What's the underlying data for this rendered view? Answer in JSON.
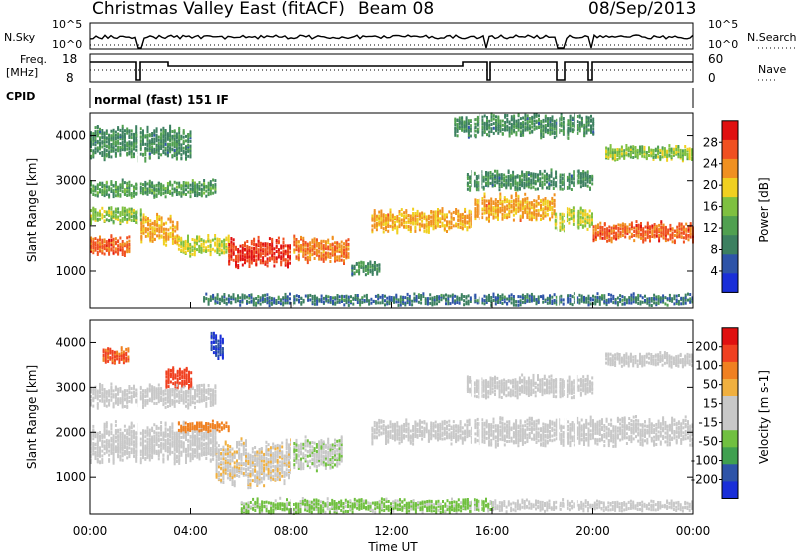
{
  "header": {
    "station": "Christmas Valley East (fitACF)",
    "beam": "Beam 08",
    "date": "08/Sep/2013"
  },
  "top_panels": {
    "nsky_label": "N.Sky",
    "nsky_ticks": [
      "10^5",
      "10^0"
    ],
    "nsearch_label": "N.Search",
    "nsearch_ticks": [
      "10^5",
      "10^0"
    ],
    "freq_label_line1": "Freq.",
    "freq_label_line2": "[MHz]",
    "freq_ticks": [
      "18",
      "8"
    ],
    "nave_label": "Nave",
    "nave_ticks": [
      "60",
      "0"
    ],
    "cpid_label": "CPID",
    "cpid_value": "normal (fast) 151 IF"
  },
  "colors": {
    "power_scale": [
      "#1a2fd8",
      "#2e54a8",
      "#3c8060",
      "#50a050",
      "#7ec040",
      "#f0d020",
      "#f09020",
      "#f05020",
      "#e01010"
    ],
    "velocity_scale": [
      "#e01010",
      "#f04020",
      "#f08020",
      "#f0b040",
      "#c8c8c8",
      "#c8c8c8",
      "#70c040",
      "#40a050",
      "#2e54a8",
      "#1a2fd8"
    ]
  },
  "chart_data": [
    {
      "type": "heatmap",
      "panel": "power",
      "xlabel": "Time UT",
      "ylabel": "Slant Range [km]",
      "x_ticks": [
        "00:00",
        "04:00",
        "08:00",
        "12:00",
        "16:00",
        "20:00",
        "00:00"
      ],
      "xlim": [
        0,
        24
      ],
      "y_ticks": [
        1000,
        2000,
        3000,
        4000
      ],
      "ylim": [
        180,
        4500
      ],
      "colorbar": {
        "label": "Power [dB]",
        "ticks": [
          4,
          8,
          12,
          16,
          20,
          24,
          28
        ],
        "range": [
          0,
          32
        ]
      },
      "echo_bands": [
        {
          "t_start": 0.0,
          "t_end": 1.6,
          "range_km": 1550,
          "width_km": 350,
          "power_db": 26
        },
        {
          "t_start": 2.0,
          "t_end": 3.5,
          "range_km": 1900,
          "width_km": 500,
          "power_db": 22
        },
        {
          "t_start": 3.5,
          "t_end": 5.5,
          "range_km": 1550,
          "width_km": 350,
          "power_db": 18
        },
        {
          "t_start": 5.5,
          "t_end": 8.0,
          "range_km": 1400,
          "width_km": 500,
          "power_db": 28
        },
        {
          "t_start": 8.0,
          "t_end": 10.3,
          "range_km": 1450,
          "width_km": 450,
          "power_db": 24
        },
        {
          "t_start": 0.0,
          "t_end": 2.0,
          "range_km": 2200,
          "width_km": 300,
          "power_db": 16
        },
        {
          "t_start": 0.0,
          "t_end": 5.0,
          "range_km": 2800,
          "width_km": 300,
          "power_db": 12
        },
        {
          "t_start": 0.0,
          "t_end": 4.0,
          "range_km": 3800,
          "width_km": 600,
          "power_db": 10
        },
        {
          "t_start": 10.4,
          "t_end": 11.5,
          "range_km": 1050,
          "width_km": 250,
          "power_db": 10
        },
        {
          "t_start": 11.2,
          "t_end": 15.2,
          "range_km": 2100,
          "width_km": 400,
          "power_db": 22
        },
        {
          "t_start": 15.3,
          "t_end": 18.5,
          "range_km": 2400,
          "width_km": 450,
          "power_db": 22
        },
        {
          "t_start": 18.5,
          "t_end": 20.0,
          "range_km": 2150,
          "width_km": 400,
          "power_db": 18
        },
        {
          "t_start": 20.0,
          "t_end": 24.0,
          "range_km": 1850,
          "width_km": 350,
          "power_db": 26
        },
        {
          "t_start": 20.5,
          "t_end": 24.0,
          "range_km": 3600,
          "width_km": 250,
          "power_db": 16
        },
        {
          "t_start": 15.0,
          "t_end": 20.0,
          "range_km": 3000,
          "width_km": 350,
          "power_db": 10
        },
        {
          "t_start": 14.5,
          "t_end": 20.0,
          "range_km": 4200,
          "width_km": 400,
          "power_db": 10
        },
        {
          "t_start": 4.5,
          "t_end": 24.0,
          "range_km": 350,
          "width_km": 200,
          "power_db": 8
        }
      ]
    },
    {
      "type": "heatmap",
      "panel": "velocity",
      "xlabel": "Time UT",
      "ylabel": "Slant Range [km]",
      "x_ticks": [
        "00:00",
        "04:00",
        "08:00",
        "12:00",
        "16:00",
        "20:00",
        "00:00"
      ],
      "xlim": [
        0,
        24
      ],
      "y_ticks": [
        1000,
        2000,
        3000,
        4000
      ],
      "ylim": [
        180,
        4500
      ],
      "colorbar": {
        "label": "Velocity [m s-1]",
        "ticks": [
          200,
          100,
          50,
          15,
          -15,
          -50,
          -100,
          -200
        ],
        "range": [
          -250,
          250
        ]
      },
      "echo_bands": [
        {
          "t_start": 0.0,
          "t_end": 5.0,
          "range_km": 1750,
          "width_km": 700,
          "velocity": 0
        },
        {
          "t_start": 5.0,
          "t_end": 8.0,
          "range_km": 1300,
          "width_km": 800,
          "velocity": 40
        },
        {
          "t_start": 8.0,
          "t_end": 10.0,
          "range_km": 1500,
          "width_km": 600,
          "velocity": -40
        },
        {
          "t_start": 3.5,
          "t_end": 5.5,
          "range_km": 2100,
          "width_km": 200,
          "velocity": 120
        },
        {
          "t_start": 0.5,
          "t_end": 1.5,
          "range_km": 3700,
          "width_km": 300,
          "velocity": 150
        },
        {
          "t_start": 3.0,
          "t_end": 4.0,
          "range_km": 3200,
          "width_km": 400,
          "velocity": 180
        },
        {
          "t_start": 4.8,
          "t_end": 5.3,
          "range_km": 3900,
          "width_km": 500,
          "velocity": -200
        },
        {
          "t_start": 0.0,
          "t_end": 5.0,
          "range_km": 2800,
          "width_km": 400,
          "velocity": 0
        },
        {
          "t_start": 11.2,
          "t_end": 15.2,
          "range_km": 2000,
          "width_km": 400,
          "velocity": 5
        },
        {
          "t_start": 15.3,
          "t_end": 24.0,
          "range_km": 2000,
          "width_km": 500,
          "velocity": 0
        },
        {
          "t_start": 20.5,
          "t_end": 24.0,
          "range_km": 3600,
          "width_km": 250,
          "velocity": 0
        },
        {
          "t_start": 15.0,
          "t_end": 20.0,
          "range_km": 3000,
          "width_km": 400,
          "velocity": 0
        },
        {
          "t_start": 6.0,
          "t_end": 16.0,
          "range_km": 350,
          "width_km": 250,
          "velocity": -60
        },
        {
          "t_start": 16.0,
          "t_end": 24.0,
          "range_km": 350,
          "width_km": 200,
          "velocity": 30
        }
      ]
    }
  ]
}
